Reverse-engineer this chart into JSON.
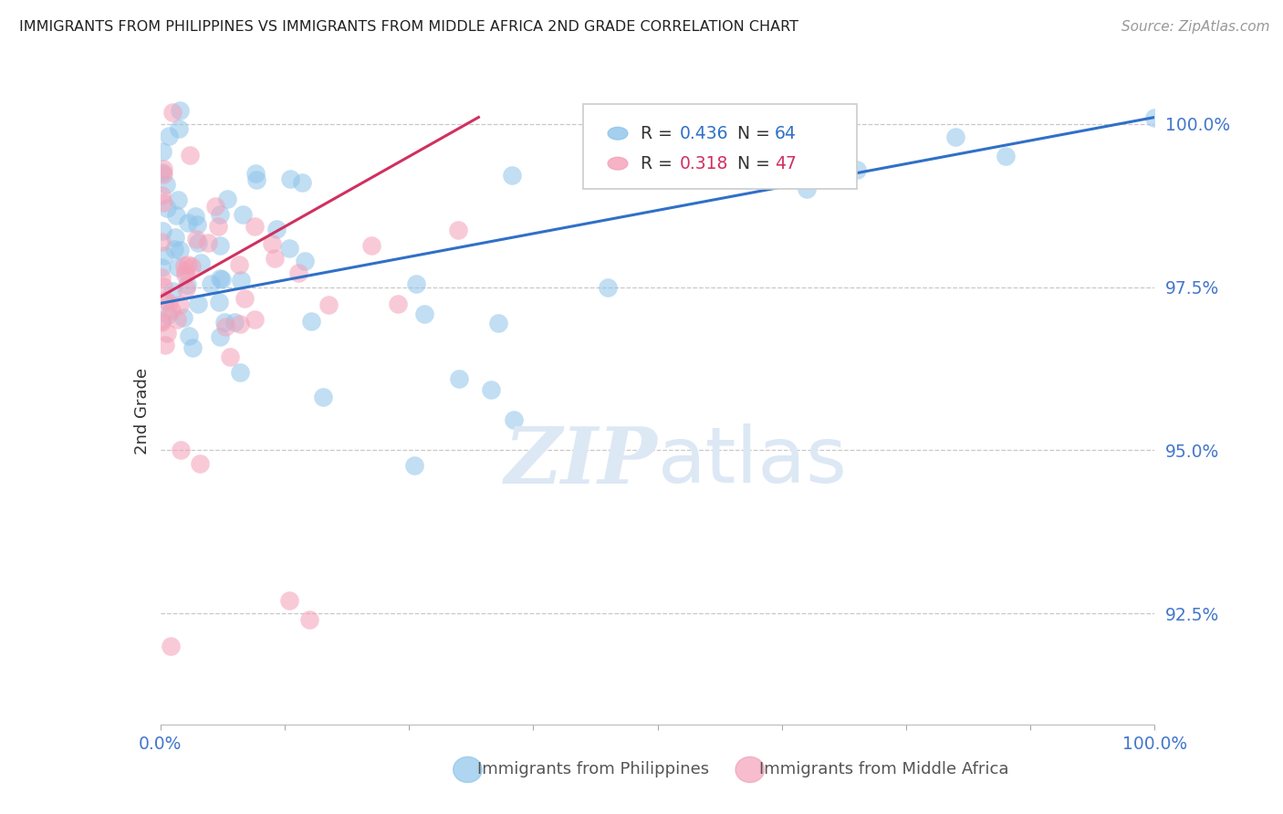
{
  "title": "IMMIGRANTS FROM PHILIPPINES VS IMMIGRANTS FROM MIDDLE AFRICA 2ND GRADE CORRELATION CHART",
  "source": "Source: ZipAtlas.com",
  "ylabel": "2nd Grade",
  "xlim": [
    0.0,
    1.0
  ],
  "ylim": [
    0.908,
    1.004
  ],
  "yticks": [
    0.925,
    0.95,
    0.975,
    1.0
  ],
  "ytick_labels": [
    "92.5%",
    "95.0%",
    "97.5%",
    "100.0%"
  ],
  "blue_R": 0.436,
  "blue_N": 64,
  "pink_R": 0.318,
  "pink_N": 47,
  "legend_label_blue": "Immigrants from Philippines",
  "legend_label_pink": "Immigrants from Middle Africa",
  "blue_color": "#8ec4ea",
  "pink_color": "#f4a0b8",
  "blue_line_color": "#3070c8",
  "pink_line_color": "#d03060",
  "title_color": "#222222",
  "tick_color": "#4477cc",
  "grid_color": "#c8c8c8",
  "watermark_color": "#dde8f5",
  "blue_trend_x0": 0.0,
  "blue_trend_y0": 0.9725,
  "blue_trend_x1": 1.0,
  "blue_trend_y1": 1.001,
  "pink_trend_x0": 0.0,
  "pink_trend_y0": 0.9735,
  "pink_trend_x1": 0.32,
  "pink_trend_y1": 1.001
}
